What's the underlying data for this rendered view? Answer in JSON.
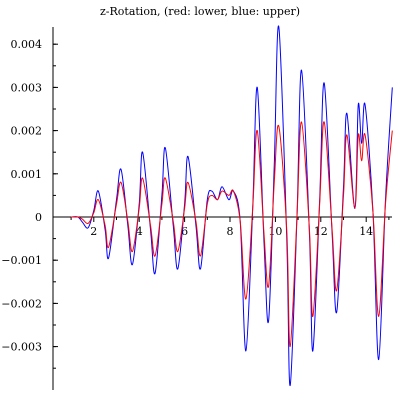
{
  "chart_data": {
    "type": "line",
    "title": "z-Rotation, (red: lower, blue: upper)",
    "xlabel": "",
    "ylabel": "",
    "xlim": [
      0,
      15.2
    ],
    "ylim": [
      -0.0039,
      0.0044
    ],
    "x_ticks": [
      {
        "value": 2,
        "label": "2"
      },
      {
        "value": 4,
        "label": "4"
      },
      {
        "value": 6,
        "label": "6"
      },
      {
        "value": 8,
        "label": "8"
      },
      {
        "value": 10,
        "label": "10"
      },
      {
        "value": 12,
        "label": "12"
      },
      {
        "value": 14,
        "label": "14"
      }
    ],
    "y_ticks": [
      {
        "value": 0.004,
        "label": "0.004"
      },
      {
        "value": 0.003,
        "label": "0.003"
      },
      {
        "value": 0.002,
        "label": "0.002"
      },
      {
        "value": 0.001,
        "label": "0.001"
      },
      {
        "value": 0,
        "label": "0"
      },
      {
        "value": -0.001,
        "label": "−0.001"
      },
      {
        "value": -0.002,
        "label": "−0.002"
      },
      {
        "value": -0.003,
        "label": "−0.003"
      }
    ],
    "grid": false,
    "series": [
      {
        "color": "#0000ff",
        "points": [
          [
            1.0,
            0.0
          ],
          [
            1.3,
            0.0
          ],
          [
            1.5,
            -0.00012
          ],
          [
            1.75,
            -0.00025
          ],
          [
            2.0,
            0.00015
          ],
          [
            2.2,
            0.0006
          ],
          [
            2.5,
            -0.0003
          ],
          [
            2.65,
            -0.00095
          ],
          [
            3.0,
            0.0004
          ],
          [
            3.2,
            0.0011
          ],
          [
            3.5,
            -0.0002
          ],
          [
            3.7,
            -0.0011
          ],
          [
            4.0,
            0.0003
          ],
          [
            4.15,
            0.0015
          ],
          [
            4.5,
            -0.0003
          ],
          [
            4.7,
            -0.0013
          ],
          [
            5.0,
            0.0005
          ],
          [
            5.15,
            0.0016
          ],
          [
            5.5,
            -0.0002
          ],
          [
            5.7,
            -0.0012
          ],
          [
            6.0,
            0.0003
          ],
          [
            6.15,
            0.0014
          ],
          [
            6.5,
            -0.0002
          ],
          [
            6.7,
            -0.0012
          ],
          [
            7.0,
            0.0004
          ],
          [
            7.2,
            0.0006
          ],
          [
            7.45,
            0.0004
          ],
          [
            7.65,
            0.0007
          ],
          [
            7.95,
            0.0004
          ],
          [
            8.15,
            0.0006
          ],
          [
            8.45,
            -0.0001
          ],
          [
            8.7,
            -0.0031
          ],
          [
            9.0,
            0.0002
          ],
          [
            9.2,
            0.003
          ],
          [
            9.5,
            -0.0006
          ],
          [
            9.7,
            -0.0024
          ],
          [
            9.95,
            0.0012
          ],
          [
            10.15,
            0.0044
          ],
          [
            10.5,
            -0.0005
          ],
          [
            10.65,
            -0.0039
          ],
          [
            10.95,
            0.0
          ],
          [
            11.15,
            0.0034
          ],
          [
            11.5,
            -0.0004
          ],
          [
            11.65,
            -0.0031
          ],
          [
            11.95,
            0.0004
          ],
          [
            12.15,
            0.0031
          ],
          [
            12.5,
            -0.0004
          ],
          [
            12.7,
            -0.0022
          ],
          [
            13.0,
            0.0007
          ],
          [
            13.15,
            0.0024
          ],
          [
            13.5,
            0.0002
          ],
          [
            13.65,
            0.0026
          ],
          [
            13.8,
            0.0017
          ],
          [
            13.95,
            0.0026
          ],
          [
            14.3,
            0.0001
          ],
          [
            14.55,
            -0.0033
          ],
          [
            14.85,
            0.0004
          ],
          [
            15.15,
            0.003
          ]
        ]
      },
      {
        "color": "#ff0000",
        "points": [
          [
            1.0,
            0.0
          ],
          [
            1.3,
            0.0
          ],
          [
            1.5,
            -5e-05
          ],
          [
            1.75,
            -0.00015
          ],
          [
            2.0,
            0.0001
          ],
          [
            2.2,
            0.0004
          ],
          [
            2.5,
            -0.0002
          ],
          [
            2.65,
            -0.0007
          ],
          [
            3.0,
            0.0003
          ],
          [
            3.2,
            0.0008
          ],
          [
            3.5,
            -0.0001
          ],
          [
            3.7,
            -0.0008
          ],
          [
            4.0,
            0.0002
          ],
          [
            4.15,
            0.0009
          ],
          [
            4.5,
            -0.0002
          ],
          [
            4.7,
            -0.0009
          ],
          [
            5.0,
            0.0003
          ],
          [
            5.15,
            0.0009
          ],
          [
            5.5,
            -0.0001
          ],
          [
            5.7,
            -0.0008
          ],
          [
            6.0,
            0.0002
          ],
          [
            6.15,
            0.0008
          ],
          [
            6.5,
            -0.0001
          ],
          [
            6.7,
            -0.0009
          ],
          [
            7.0,
            0.0003
          ],
          [
            7.2,
            0.0005
          ],
          [
            7.45,
            0.0004
          ],
          [
            7.65,
            0.0006
          ],
          [
            7.95,
            0.0005
          ],
          [
            8.15,
            0.0006
          ],
          [
            8.45,
            -0.0001
          ],
          [
            8.7,
            -0.0019
          ],
          [
            9.0,
            0.0002
          ],
          [
            9.2,
            0.002
          ],
          [
            9.5,
            -0.0004
          ],
          [
            9.7,
            -0.0016
          ],
          [
            9.95,
            0.0008
          ],
          [
            10.15,
            0.0021
          ],
          [
            10.5,
            -0.0003
          ],
          [
            10.65,
            -0.003
          ],
          [
            10.95,
            0.0
          ],
          [
            11.15,
            0.0022
          ],
          [
            11.5,
            -0.0003
          ],
          [
            11.65,
            -0.0023
          ],
          [
            11.95,
            0.0003
          ],
          [
            12.15,
            0.0022
          ],
          [
            12.5,
            -0.0003
          ],
          [
            12.7,
            -0.0017
          ],
          [
            13.0,
            0.0005
          ],
          [
            13.15,
            0.0019
          ],
          [
            13.5,
            0.0002
          ],
          [
            13.65,
            0.0019
          ],
          [
            13.8,
            0.0013
          ],
          [
            13.95,
            0.0019
          ],
          [
            14.3,
            0.0001
          ],
          [
            14.55,
            -0.0023
          ],
          [
            14.85,
            0.0003
          ],
          [
            15.15,
            0.002
          ]
        ]
      }
    ]
  }
}
